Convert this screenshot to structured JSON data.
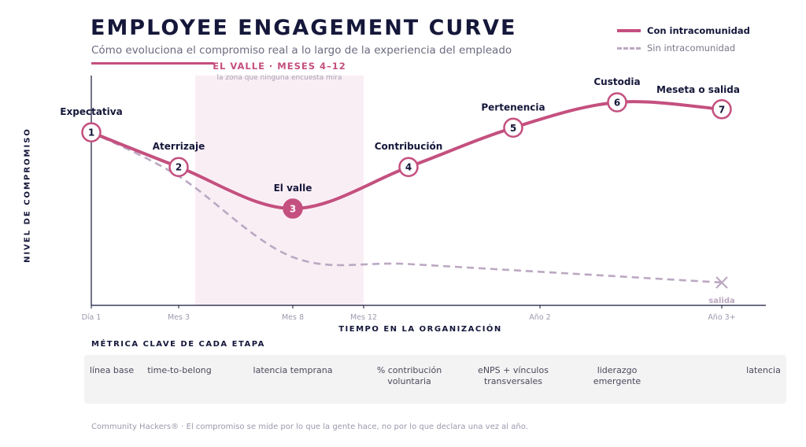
{
  "header": {
    "title": "EMPLOYEE ENGAGEMENT CURVE",
    "subtitle": "Cómo evoluciona el compromiso real a lo largo de la experiencia del empleado"
  },
  "legend": {
    "with_label": "Con intracomunidad",
    "without_label": "Sin intracomunidad"
  },
  "colors": {
    "accent": "#c4507f",
    "dashed": "#bba8c2",
    "valley_band": "#faeef5",
    "ink": "#15173a"
  },
  "chart_data": {
    "type": "line",
    "xlabel": "TIEMPO EN LA ORGANIZACIÓN",
    "ylabel": "NIVEL DE COMPROMISO",
    "x_ticks": [
      "Día 1",
      "Mes 3",
      "Mes 8",
      "Mes 12",
      "Año 2",
      "Año 3+"
    ],
    "valley_band": {
      "label": "EL VALLE · MESES 4–12",
      "sublabel": "la zona que ninguna encuesta mira",
      "from_month": 4,
      "to_month": 12
    },
    "series": [
      {
        "name": "Con intracomunidad",
        "points": [
          {
            "n": "1",
            "label": "Expectativa",
            "month": 0,
            "y": 0.75
          },
          {
            "n": "2",
            "label": "Aterrizaje",
            "month": 3,
            "y": 0.6
          },
          {
            "n": "3",
            "label": "El valle",
            "month": 8,
            "y": 0.42
          },
          {
            "n": "4",
            "label": "Contribución",
            "month": 14,
            "y": 0.6
          },
          {
            "n": "5",
            "label": "Pertenencia",
            "month": 20,
            "y": 0.77
          },
          {
            "n": "6",
            "label": "Custodia",
            "month": 27,
            "y": 0.88
          },
          {
            "n": "7",
            "label": "Meseta o salida",
            "month": 36,
            "y": 0.85
          }
        ]
      },
      {
        "name": "Sin intracomunidad",
        "points": [
          {
            "month": 0,
            "y": 0.75
          },
          {
            "month": 3,
            "y": 0.56
          },
          {
            "month": 8,
            "y": 0.21
          },
          {
            "month": 14,
            "y": 0.18
          },
          {
            "month": 25,
            "y": 0.14
          },
          {
            "month": 36,
            "y": 0.1
          }
        ],
        "end_label": "salida"
      }
    ]
  },
  "metrics": {
    "heading": "MÉTRICA CLAVE DE CADA ETAPA",
    "items": [
      "línea base",
      "time-to-belong",
      "latencia temprana",
      "% contribución voluntaria",
      "eNPS + vínculos transversales",
      "liderazgo emergente",
      "latencia"
    ]
  },
  "footer": "Community Hackers® · El compromiso se mide por lo que la gente hace, no por lo que declara una vez al año."
}
